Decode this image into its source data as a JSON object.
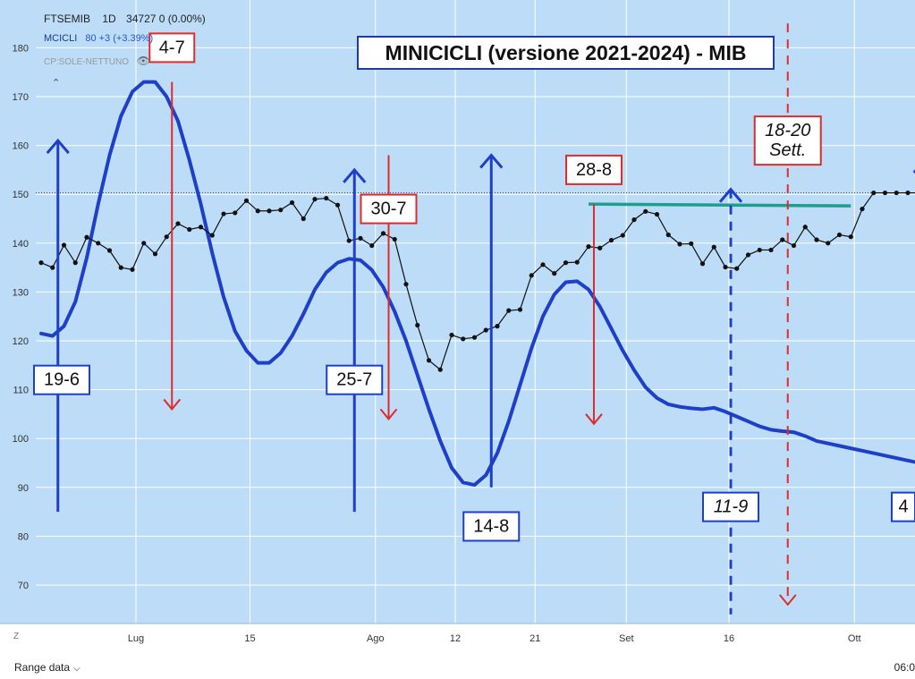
{
  "legend": {
    "symbol": "FTSEMIB",
    "timeframe": "1D",
    "price": "34727",
    "change": "0 (0.00%)",
    "indicator_name": "MCICLI",
    "indicator_value": "80 +3 (+3.39%)",
    "overlay_name": "CP:SOLE-NETTUNO",
    "eye_icon": "eye-off-icon"
  },
  "chart_title": "MINICICLI (versione 2021-2024) - MIB",
  "bottom_bar": {
    "range_label": "Range data",
    "time_label": "06:0",
    "scale_label": "Z"
  },
  "colors": {
    "background": "#bcdcf7",
    "cycle_line": "#1e3fc7",
    "price_line": "#111111",
    "red_markers": "#e02b2b",
    "blue_markers": "#1e3fc7",
    "resistance": "#1e9e8c"
  },
  "chart_data": {
    "type": "line",
    "ylim": [
      64,
      185
    ],
    "y_ticks": [
      70,
      80,
      90,
      100,
      110,
      120,
      130,
      140,
      150,
      160,
      170,
      180
    ],
    "x_ticks": [
      "Lug",
      "15",
      "Ago",
      "12",
      "21",
      "Set",
      "16",
      "Ott"
    ],
    "grid": true,
    "series": [
      {
        "name": "FTSEMIB",
        "style": "line-with-dots",
        "values": [
          [
            0,
            136
          ],
          [
            1,
            135
          ],
          [
            2,
            139.6
          ],
          [
            3,
            136
          ],
          [
            4,
            141.2
          ],
          [
            5,
            140
          ],
          [
            6,
            138.5
          ],
          [
            7,
            135
          ],
          [
            8,
            134.6
          ],
          [
            9,
            140
          ],
          [
            10,
            137.8
          ],
          [
            11,
            141.3
          ],
          [
            12,
            144
          ],
          [
            13,
            142.8
          ],
          [
            14,
            143.3
          ],
          [
            15,
            141.6
          ],
          [
            16,
            146
          ],
          [
            17,
            146.2
          ],
          [
            18,
            148.7
          ],
          [
            19,
            146.6
          ],
          [
            20,
            146.6
          ],
          [
            21,
            146.8
          ],
          [
            22,
            148.3
          ],
          [
            23,
            145
          ],
          [
            24,
            149
          ],
          [
            25,
            149.2
          ],
          [
            26,
            147.8
          ],
          [
            27,
            140.5
          ],
          [
            28,
            141
          ],
          [
            29,
            139.5
          ],
          [
            30,
            142
          ],
          [
            31,
            140.8
          ],
          [
            32,
            131.6
          ],
          [
            33,
            123.2
          ],
          [
            34,
            116
          ],
          [
            35,
            114.1
          ],
          [
            36,
            121.2
          ],
          [
            37,
            120.4
          ],
          [
            38,
            120.7
          ],
          [
            39,
            122.2
          ],
          [
            40,
            123
          ],
          [
            41,
            126.2
          ],
          [
            42,
            126.4
          ],
          [
            43,
            133.4
          ],
          [
            44,
            135.6
          ],
          [
            45,
            133.8
          ],
          [
            46,
            136
          ],
          [
            47,
            136.1
          ],
          [
            48,
            139.3
          ],
          [
            49,
            139
          ],
          [
            50,
            140.6
          ],
          [
            51,
            141.6
          ],
          [
            52,
            144.8
          ],
          [
            53,
            146.5
          ],
          [
            54,
            145.9
          ],
          [
            55,
            141.7
          ],
          [
            56,
            139.8
          ],
          [
            57,
            139.9
          ],
          [
            58,
            135.8
          ],
          [
            59,
            139.2
          ],
          [
            60,
            135.1
          ],
          [
            61,
            134.8
          ],
          [
            62,
            137.6
          ],
          [
            63,
            138.6
          ],
          [
            64,
            138.6
          ],
          [
            65,
            140.7
          ],
          [
            66,
            139.5
          ],
          [
            67,
            143.3
          ],
          [
            68,
            140.7
          ],
          [
            69,
            140
          ],
          [
            70,
            141.7
          ],
          [
            71,
            141.3
          ],
          [
            72,
            147
          ],
          [
            73,
            150.3
          ],
          [
            74,
            150.3
          ],
          [
            75,
            150.3
          ],
          [
            76,
            150.3
          ],
          [
            77,
            150.3
          ]
        ]
      },
      {
        "name": "MCICLI",
        "style": "thick-line",
        "values": [
          [
            0,
            121.5
          ],
          [
            1,
            121
          ],
          [
            2,
            123
          ],
          [
            3,
            128
          ],
          [
            4,
            137
          ],
          [
            5,
            148
          ],
          [
            6,
            158
          ],
          [
            7,
            166
          ],
          [
            8,
            171
          ],
          [
            9,
            173
          ],
          [
            10,
            173
          ],
          [
            11,
            170
          ],
          [
            12,
            165
          ],
          [
            13,
            157
          ],
          [
            14,
            148
          ],
          [
            15,
            138
          ],
          [
            16,
            129
          ],
          [
            17,
            122
          ],
          [
            18,
            118
          ],
          [
            19,
            115.5
          ],
          [
            20,
            115.5
          ],
          [
            21,
            117.5
          ],
          [
            22,
            121
          ],
          [
            23,
            125.5
          ],
          [
            24,
            130.5
          ],
          [
            25,
            134
          ],
          [
            26,
            136
          ],
          [
            27,
            136.8
          ],
          [
            28,
            136.5
          ],
          [
            29,
            134.5
          ],
          [
            30,
            131
          ],
          [
            31,
            126
          ],
          [
            32,
            120
          ],
          [
            33,
            113
          ],
          [
            34,
            106
          ],
          [
            35,
            99.5
          ],
          [
            36,
            94
          ],
          [
            37,
            91
          ],
          [
            38,
            90.5
          ],
          [
            39,
            92.5
          ],
          [
            40,
            97
          ],
          [
            41,
            103.5
          ],
          [
            42,
            111
          ],
          [
            43,
            118.5
          ],
          [
            44,
            125
          ],
          [
            45,
            129.5
          ],
          [
            46,
            132
          ],
          [
            47,
            132.2
          ],
          [
            48,
            130.5
          ],
          [
            49,
            127
          ],
          [
            50,
            122.5
          ],
          [
            51,
            118
          ],
          [
            52,
            114
          ],
          [
            53,
            110.5
          ],
          [
            54,
            108.3
          ],
          [
            55,
            107
          ],
          [
            56,
            106.5
          ],
          [
            57,
            106.2
          ],
          [
            58,
            106
          ],
          [
            59,
            106.3
          ],
          [
            60,
            105.5
          ],
          [
            61,
            104.5
          ],
          [
            62,
            103.5
          ],
          [
            63,
            102.5
          ],
          [
            64,
            101.8
          ],
          [
            65,
            101.5
          ],
          [
            66,
            101.3
          ],
          [
            67,
            100.5
          ],
          [
            68,
            99.5
          ],
          [
            69,
            99
          ],
          [
            70,
            98.5
          ],
          [
            71,
            98
          ],
          [
            72,
            97.5
          ],
          [
            73,
            97
          ],
          [
            74,
            96.5
          ],
          [
            75,
            96
          ],
          [
            76,
            95.5
          ],
          [
            77,
            95
          ]
        ]
      }
    ],
    "current_price_level": 150.3,
    "resistance_line": {
      "y": 148,
      "from_x": 48,
      "to_x": 71
    },
    "annotations": [
      {
        "label": "19-6",
        "color": "blue",
        "direction": "up",
        "x": 1,
        "top": 161,
        "bottom": 85,
        "label_y": 112
      },
      {
        "label": "4-7",
        "color": "red",
        "direction": "down",
        "x": 11,
        "top": 173,
        "bottom": 106,
        "label_y": 180
      },
      {
        "label": "25-7",
        "color": "blue",
        "direction": "up",
        "x": 27,
        "top": 155,
        "bottom": 85,
        "label_y": 112
      },
      {
        "label": "30-7",
        "color": "red",
        "direction": "down",
        "x": 30,
        "top": 158,
        "bottom": 104,
        "label_y": 147
      },
      {
        "label": "14-8",
        "color": "blue",
        "direction": "up",
        "x": 39,
        "top": 158,
        "bottom": 90,
        "label_y": 82
      },
      {
        "label": "28-8",
        "color": "red",
        "direction": "down",
        "x": 48,
        "top": 148,
        "bottom": 103,
        "label_y": 155
      },
      {
        "label": "11-9",
        "color": "blue",
        "direction": "up",
        "dashed": true,
        "x": 60,
        "top": 151,
        "bottom": 64,
        "label_y": 86
      },
      {
        "label": "18-20\nSett.",
        "color": "red",
        "direction": "down",
        "dashed": true,
        "x": 65,
        "top": 185,
        "bottom": 66,
        "label_y": 161
      },
      {
        "label": "4",
        "color": "blue",
        "direction": "up",
        "x": 77,
        "top": 157,
        "bottom": 150,
        "label_y": 86
      }
    ]
  }
}
